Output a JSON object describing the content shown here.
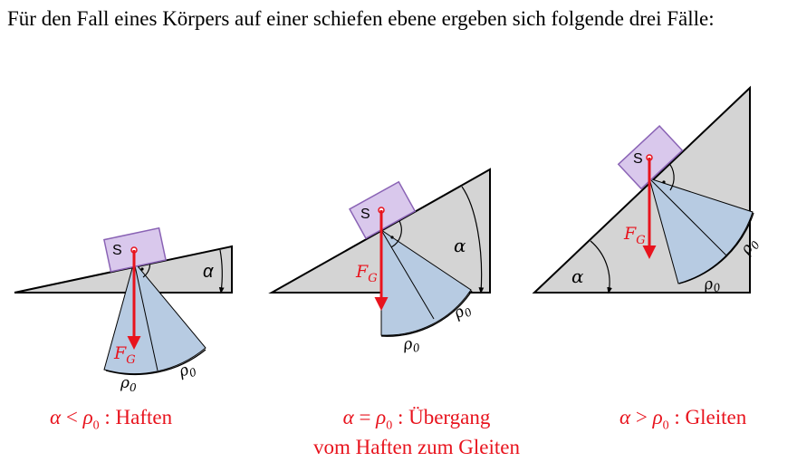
{
  "intro_text": "Für den Fall eines Körpers auf einer schiefen ebene ergeben sich folgende drei Fälle:",
  "colors": {
    "slope_fill": "#d4d4d4",
    "block_fill": "#d9c8ec",
    "block_stroke": "#8a63b5",
    "cone_fill": "#b7cbe2",
    "force_arrow": "#e8131d",
    "caption": "#e8131d"
  },
  "diagrams": [
    {
      "block_label": "S",
      "force_label": "F",
      "force_sub": "G",
      "angle_label": "α",
      "rho_label_1": "ρ",
      "rho_label_2": "ρ",
      "rho_sub": "0",
      "caption": {
        "lhs": "α",
        "op": "<",
        "rhs": "ρ",
        "rhs_sub": "0",
        "text": ": Haften"
      }
    },
    {
      "block_label": "S",
      "force_label": "F",
      "force_sub": "G",
      "angle_label": "α",
      "rho_label_1": "ρ",
      "rho_label_2": "ρ",
      "rho_sub": "0",
      "caption": {
        "lhs": "α",
        "op": "=",
        "rhs": "ρ",
        "rhs_sub": "0",
        "text": ": Übergang",
        "line2": "vom Haften zum Gleiten"
      }
    },
    {
      "block_label": "S",
      "force_label": "F",
      "force_sub": "G",
      "angle_label": "α",
      "rho_label_1": "ρ",
      "rho_label_2": "ρ",
      "rho_sub": "0",
      "caption": {
        "lhs": "α",
        "op": ">",
        "rhs": "ρ",
        "rhs_sub": "0",
        "text": ": Gleiten"
      }
    }
  ]
}
